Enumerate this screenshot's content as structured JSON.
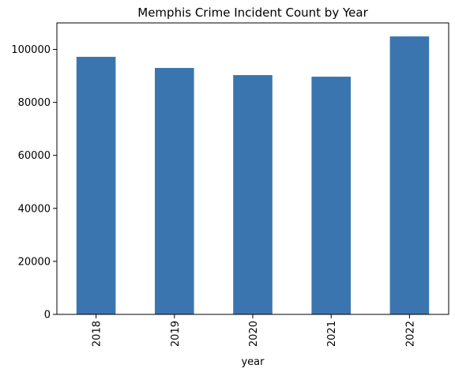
{
  "chart_data": {
    "type": "bar",
    "title": "Memphis Crime Incident Count by Year",
    "xlabel": "year",
    "ylabel": "",
    "categories": [
      "2018",
      "2019",
      "2020",
      "2021",
      "2022"
    ],
    "values": [
      97200,
      93000,
      90300,
      89700,
      104900
    ],
    "ylim": [
      0,
      110000
    ],
    "yticks": [
      0,
      20000,
      40000,
      60000,
      80000,
      100000
    ],
    "ytick_labels": [
      "0",
      "20000",
      "40000",
      "60000",
      "80000",
      "100000"
    ],
    "bar_color": "#3a75b0",
    "grid": false,
    "legend": "none",
    "xtick_rotation": "vertical"
  }
}
